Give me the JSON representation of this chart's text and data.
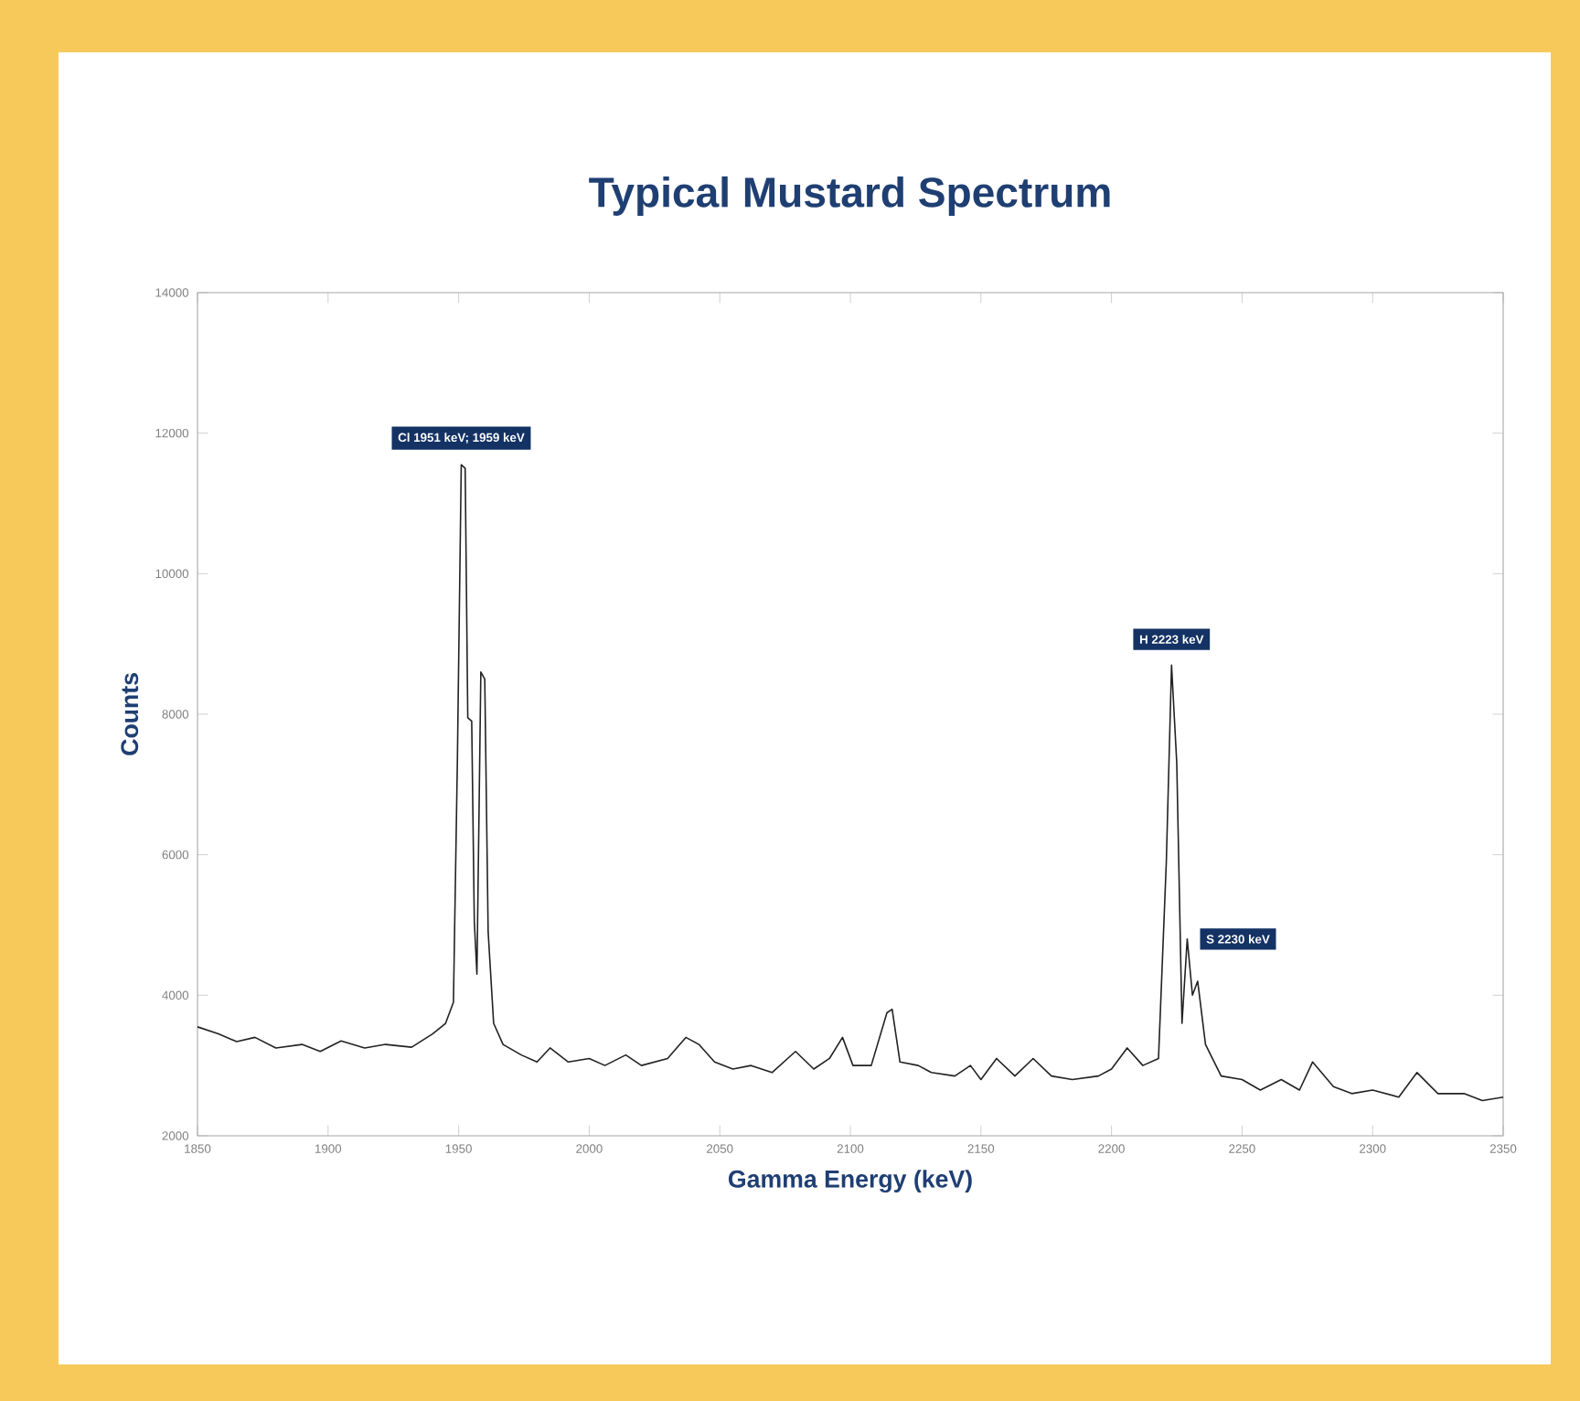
{
  "chart_data": {
    "type": "line",
    "title": "Typical Mustard Spectrum",
    "xlabel": "Gamma Energy (keV)",
    "ylabel": "Counts",
    "xlim": [
      1850,
      2350
    ],
    "ylim": [
      2000,
      14000
    ],
    "xticks": [
      1850,
      1900,
      1950,
      2000,
      2050,
      2100,
      2150,
      2200,
      2250,
      2300,
      2350
    ],
    "yticks": [
      2000,
      4000,
      6000,
      8000,
      10000,
      12000,
      14000
    ],
    "color": "#222222",
    "x": [
      1850,
      1858,
      1865,
      1872,
      1880,
      1890,
      1897,
      1905,
      1914,
      1922,
      1932,
      1940,
      1945,
      1948,
      1949.5,
      1951,
      1952.5,
      1953.5,
      1955,
      1956,
      1957,
      1958.5,
      1960,
      1961.3,
      1963.4,
      1967,
      1974,
      1980,
      1985,
      1992,
      2000,
      2006,
      2014,
      2020,
      2030,
      2037,
      2042,
      2048,
      2055,
      2062,
      2070,
      2079,
      2086,
      2092,
      2097,
      2101,
      2108,
      2114,
      2116,
      2119,
      2126,
      2131,
      2140,
      2146,
      2150,
      2156,
      2163,
      2170,
      2177,
      2185,
      2195,
      2200,
      2206,
      2212,
      2218,
      2221,
      2223,
      2225,
      2227,
      2229,
      2231,
      2233,
      2236,
      2242,
      2250,
      2257,
      2265,
      2272,
      2277,
      2285,
      2292,
      2300,
      2310,
      2317,
      2325,
      2335,
      2342,
      2350
    ],
    "values": [
      3550,
      3450,
      3340,
      3400,
      3250,
      3300,
      3200,
      3350,
      3250,
      3300,
      3260,
      3450,
      3600,
      3900,
      7300,
      11550,
      11500,
      7950,
      7900,
      5050,
      4300,
      8600,
      8500,
      4900,
      3600,
      3300,
      3150,
      3050,
      3250,
      3050,
      3100,
      3000,
      3150,
      3000,
      3100,
      3400,
      3300,
      3050,
      2950,
      3000,
      2900,
      3200,
      2950,
      3100,
      3400,
      3000,
      3000,
      3750,
      3800,
      3050,
      3000,
      2900,
      2850,
      3000,
      2800,
      3100,
      2850,
      3100,
      2850,
      2800,
      2850,
      2950,
      3250,
      3000,
      3100,
      5900,
      8700,
      7300,
      3600,
      4800,
      4000,
      4200,
      3300,
      2850,
      2800,
      2650,
      2800,
      2650,
      3050,
      2700,
      2600,
      2650,
      2550,
      2900,
      2600,
      2600,
      2500,
      2550
    ],
    "annotations": [
      {
        "text": "Cl 1951 keV; 1959 keV",
        "x": 1951,
        "y": 11550
      },
      {
        "text": "H 2223 keV",
        "x": 2223,
        "y": 8700
      },
      {
        "text": "S 2230 keV",
        "x": 2230,
        "y": 4800
      }
    ]
  }
}
